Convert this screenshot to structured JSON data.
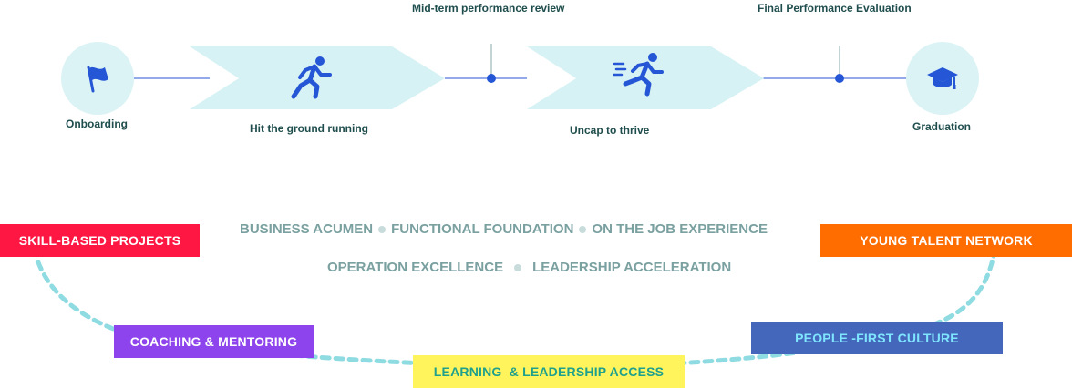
{
  "milestones": {
    "mid_term": "Mid-term performance review",
    "final": "Final Performance Evaluation"
  },
  "stages": {
    "onboarding": "Onboarding",
    "hit_ground": "Hit the ground running",
    "uncap": "Uncap to thrive",
    "graduation": "Graduation"
  },
  "pillars": {
    "row1": [
      "BUSINESS ACUMEN",
      "FUNCTIONAL FOUNDATION",
      "ON THE JOB EXPERIENCE"
    ],
    "row2": [
      "OPERATION EXCELLENCE",
      "LEADERSHIP ACCELERATION"
    ]
  },
  "tags": {
    "skill_based": "SKILL-BASED PROJECTS",
    "young_talent": "YOUNG TALENT NETWORK",
    "coaching": "COACHING & MENTORING",
    "people_first": "PEOPLE -FIRST CULTURE",
    "learning": "LEARNING  & LEADERSHIP ACCESS"
  },
  "colors": {
    "circle_fill": "#dbf3f5",
    "chevron_fill": "#d7f2f4",
    "icon_blue": "#2456d6",
    "line": "#2456d6",
    "dashed_arc": "#8fdbe2",
    "skill_based": "#ff1744",
    "young_talent": "#ff6d00",
    "coaching": "#8e44ec",
    "people_first": "#4466bb",
    "learning": "#fff45c"
  },
  "icons": {
    "onboarding": "flag-icon",
    "hit_ground": "running-person-icon",
    "uncap": "sprinting-person-icon",
    "graduation": "graduation-cap-icon"
  }
}
